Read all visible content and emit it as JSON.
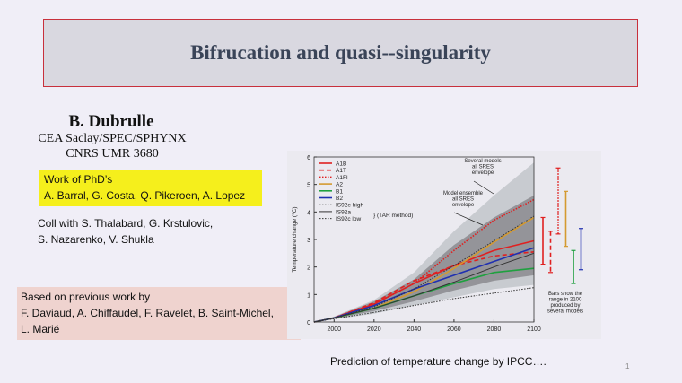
{
  "title": "Bifrucation and quasi--singularity",
  "author": {
    "name": "B. Dubrulle",
    "affiliation1": "CEA Saclay/SPEC/SPHYNX",
    "affiliation2": "CNRS UMR 3680"
  },
  "phd": {
    "heading": "Work of PhD’s",
    "names": "A. Barral, G. Costa, Q. Pikeroen, A. Lopez"
  },
  "coll": {
    "line1": "Coll with S. Thalabard, G. Krstulovic,",
    "line2": "S. Nazarenko, V. Shukla"
  },
  "previous": {
    "line1": "Based on previous work by",
    "line2": "F. Daviaud, A. Chiffaudel,  F. Ravelet, B. Saint-Michel,",
    "line3": "L. Marié"
  },
  "caption": "Prediction of temperature change by IPCC….",
  "page_number": "1",
  "chart_data": {
    "type": "line",
    "ylabel": "Temperature change (°C)",
    "xlabel": "",
    "xlim": [
      1990,
      2100
    ],
    "ylim": [
      0,
      6
    ],
    "x_ticks": [
      "2000",
      "2020",
      "2040",
      "2060",
      "2080",
      "2100"
    ],
    "y_ticks": [
      "0",
      "1",
      "2",
      "3",
      "4",
      "5",
      "6"
    ],
    "x": [
      1990,
      2000,
      2020,
      2040,
      2060,
      2080,
      2100
    ],
    "series": [
      {
        "name": "A1B",
        "color": "#e02020",
        "style": "solid",
        "values": [
          0,
          0.15,
          0.65,
          1.4,
          2.05,
          2.6,
          2.95
        ]
      },
      {
        "name": "A1T",
        "color": "#e02020",
        "style": "dashed",
        "values": [
          0,
          0.15,
          0.7,
          1.5,
          2.05,
          2.4,
          2.55
        ]
      },
      {
        "name": "A1FI",
        "color": "#e02020",
        "style": "dotted",
        "values": [
          0,
          0.15,
          0.65,
          1.4,
          2.6,
          3.7,
          4.45
        ]
      },
      {
        "name": "A2",
        "color": "#d49a30",
        "style": "solid",
        "values": [
          0,
          0.15,
          0.5,
          1.1,
          1.95,
          2.9,
          3.8
        ]
      },
      {
        "name": "B1",
        "color": "#20a040",
        "style": "solid",
        "values": [
          0,
          0.15,
          0.5,
          0.95,
          1.4,
          1.8,
          1.95
        ]
      },
      {
        "name": "B2",
        "color": "#2030b0",
        "style": "solid",
        "values": [
          0,
          0.15,
          0.6,
          1.2,
          1.7,
          2.2,
          2.7
        ]
      },
      {
        "name": "IS92e high",
        "color": "#333333",
        "style": "dotted",
        "values": [
          0,
          0.15,
          0.55,
          1.2,
          2.05,
          2.95,
          3.85
        ]
      },
      {
        "name": "IS92a",
        "color": "#333333",
        "style": "solid",
        "values": [
          0,
          0.15,
          0.5,
          0.95,
          1.45,
          2.0,
          2.5
        ]
      },
      {
        "name": "IS92c low",
        "color": "#333333",
        "style": "dotted",
        "values": [
          0,
          0.12,
          0.35,
          0.6,
          0.85,
          1.05,
          1.25
        ]
      }
    ],
    "envelopes": [
      {
        "label": "Several models all SRES envelope",
        "color": "#c4c8cc",
        "lower": [
          0,
          0.1,
          0.3,
          0.6,
          0.9,
          1.2,
          1.35
        ],
        "upper": [
          0,
          0.2,
          0.8,
          1.8,
          3.3,
          4.6,
          5.8
        ]
      },
      {
        "label": "Model ensemble all SRES envelope",
        "color": "#8e8e92",
        "lower": [
          0,
          0.12,
          0.4,
          0.75,
          1.15,
          1.5,
          1.7
        ],
        "upper": [
          0,
          0.18,
          0.75,
          1.55,
          2.8,
          3.8,
          4.6
        ]
      }
    ],
    "tar_label": "(TAR method)",
    "range_bars": [
      {
        "series": "A1B",
        "color": "#e02020",
        "style": "solid",
        "min": 2.1,
        "max": 3.8
      },
      {
        "series": "A1T",
        "color": "#e02020",
        "style": "dashed",
        "min": 1.8,
        "max": 3.3
      },
      {
        "series": "A1FI",
        "color": "#e02020",
        "style": "dotted",
        "min": 3.2,
        "max": 5.6
      },
      {
        "series": "A2",
        "color": "#d49a30",
        "style": "solid",
        "min": 2.75,
        "max": 4.75
      },
      {
        "series": "B1",
        "color": "#20a040",
        "style": "solid",
        "min": 1.4,
        "max": 2.6
      },
      {
        "series": "B2",
        "color": "#2030b0",
        "style": "solid",
        "min": 1.9,
        "max": 3.4
      }
    ],
    "bars_note": [
      "Bars show the",
      "range in 2100",
      "produced by",
      "several models"
    ],
    "legend": "top-left",
    "grid": false
  }
}
